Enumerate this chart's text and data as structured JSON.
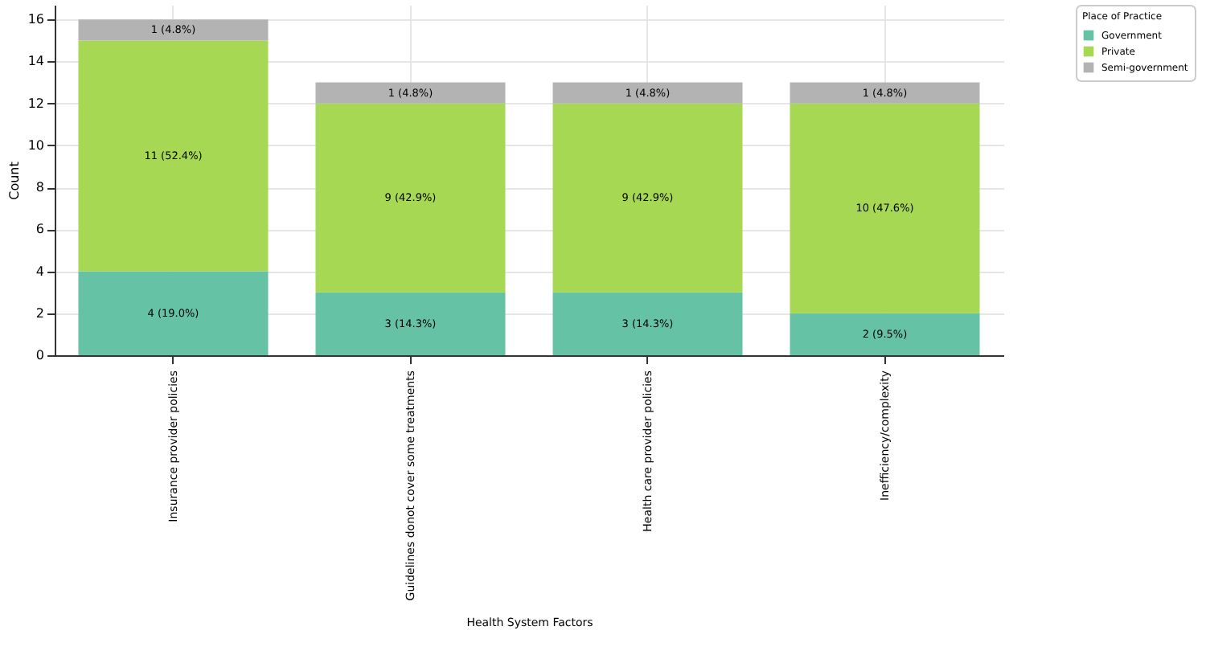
{
  "chart_data": {
    "type": "bar",
    "stacked": true,
    "xlabel": "Health System Factors",
    "ylabel": "Count",
    "legend_title": "Place of Practice",
    "legend": "top right",
    "grid": true,
    "categories": [
      "Insurance provider policies",
      "Guidelines donot cover some treatments",
      "Health care provider policies",
      "Inefficiency/complexity"
    ],
    "ylim": [
      0,
      16.7
    ],
    "yticks": [
      0,
      2,
      4,
      6,
      8,
      10,
      12,
      14,
      16
    ],
    "series": [
      {
        "name": "Government",
        "color": "#66c2a5",
        "values": [
          4,
          3,
          3,
          2
        ],
        "value_labels": [
          "4 (19.0%)",
          "3 (14.3%)",
          "3 (14.3%)",
          "2 (9.5%)"
        ]
      },
      {
        "name": "Private",
        "color": "#a6d854",
        "values": [
          11,
          9,
          9,
          10
        ],
        "value_labels": [
          "11 (52.4%)",
          "9 (42.9%)",
          "9 (42.9%)",
          "10 (47.6%)"
        ]
      },
      {
        "name": "Semi-government",
        "color": "#b3b3b3",
        "values": [
          1,
          1,
          1,
          1
        ],
        "value_labels": [
          "1 (4.8%)",
          "1 (4.8%)",
          "1 (4.8%)",
          "1 (4.8%)"
        ]
      }
    ]
  }
}
